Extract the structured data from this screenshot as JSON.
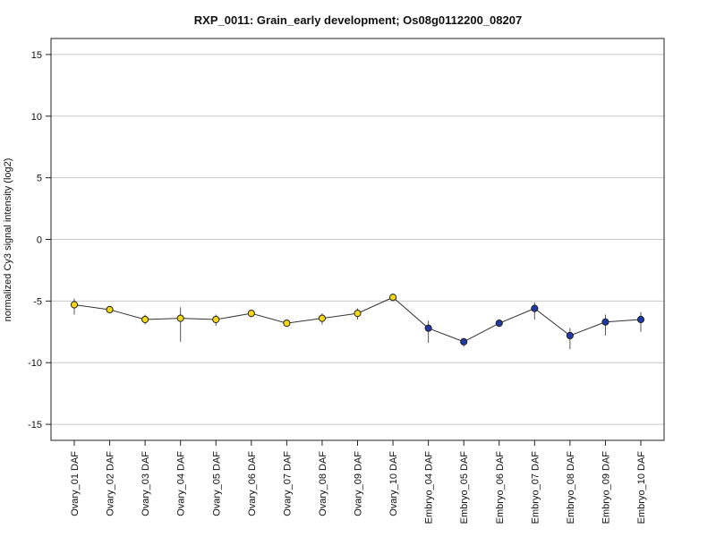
{
  "chart_data": {
    "type": "line",
    "title": "RXP_0011: Grain_early development; Os08g0112200_08207",
    "xlabel": "",
    "ylabel": "normalized Cy3 signal intensity (log2)",
    "ylim": [
      -16.3,
      16.3
    ],
    "yticks": [
      15,
      10,
      5,
      0,
      -5,
      -10,
      -15
    ],
    "grid": true,
    "categories": [
      "Ovary_01 DAF",
      "Ovary_02 DAF",
      "Ovary_03 DAF",
      "Ovary_04 DAF",
      "Ovary_05 DAF",
      "Ovary_06 DAF",
      "Ovary_07 DAF",
      "Ovary_08 DAF",
      "Ovary_09 DAF",
      "Ovary_10 DAF",
      "Embryo_04 DAF",
      "Embryo_05 DAF",
      "Embryo_06 DAF",
      "Embryo_07 DAF",
      "Embryo_08 DAF",
      "Embryo_09 DAF",
      "Embryo_10 DAF"
    ],
    "values": [
      -5.3,
      -5.7,
      -6.5,
      -6.4,
      -6.5,
      -6.0,
      -6.8,
      -6.4,
      -6.0,
      -4.7,
      -7.2,
      -8.3,
      -6.8,
      -5.6,
      -7.8,
      -6.7,
      -6.5
    ],
    "error_low": [
      -6.1,
      -5.9,
      -6.9,
      -8.3,
      -7.0,
      -6.3,
      -7.0,
      -6.9,
      -6.5,
      -5.0,
      -8.4,
      -8.7,
      -7.0,
      -6.5,
      -8.9,
      -7.8,
      -7.5
    ],
    "error_high": [
      -4.8,
      -5.5,
      -6.1,
      -5.5,
      -6.1,
      -5.7,
      -6.6,
      -6.0,
      -5.6,
      -4.4,
      -6.6,
      -8.0,
      -6.6,
      -5.1,
      -7.2,
      -6.1,
      -5.9
    ],
    "point_colors": [
      "#f2d718",
      "#f2d718",
      "#f2d718",
      "#f2d718",
      "#f2d718",
      "#f2d718",
      "#f2d718",
      "#f2d718",
      "#f2d718",
      "#f2d718",
      "#1f3aa8",
      "#1f3aa8",
      "#1f3aa8",
      "#1f3aa8",
      "#1f3aa8",
      "#1f3aa8",
      "#1f3aa8"
    ],
    "line_color": "#333333",
    "grid_color": "#c8c8c8"
  }
}
